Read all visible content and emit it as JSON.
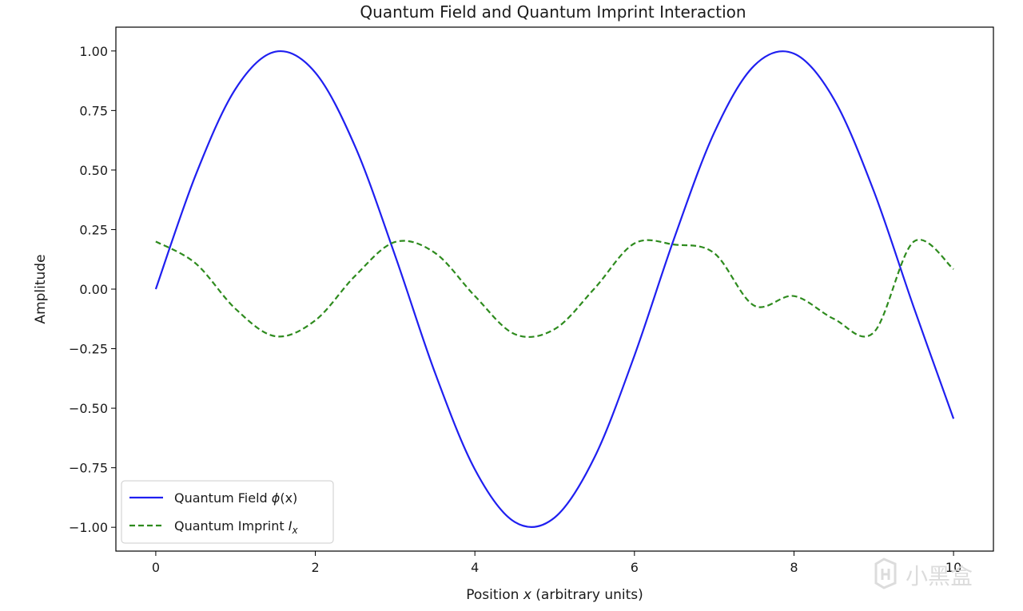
{
  "chart_data": {
    "type": "line",
    "title": "Quantum Field and Quantum Imprint Interaction",
    "xlabel": "Position x (arbitrary units)",
    "ylabel": "Amplitude",
    "xlim": [
      -0.5,
      10.5
    ],
    "ylim": [
      -1.1,
      1.1
    ],
    "xticks": [
      0,
      2,
      4,
      6,
      8,
      10
    ],
    "xtick_labels": [
      "0",
      "2",
      "4",
      "6",
      "8",
      "10"
    ],
    "yticks": [
      1.0,
      0.75,
      0.5,
      0.25,
      0.0,
      -0.25,
      -0.5,
      -0.75,
      -1.0
    ],
    "ytick_labels": [
      "1.00",
      "0.75",
      "0.50",
      "0.25",
      "0.00",
      "−0.25",
      "−0.50",
      "−0.75",
      "−1.00"
    ],
    "grid": false,
    "legend_position": "lower-left",
    "x": [
      0,
      0.5,
      1,
      1.5,
      2,
      2.5,
      3,
      3.5,
      4,
      4.5,
      5,
      5.5,
      6,
      6.5,
      7,
      7.5,
      8,
      8.5,
      9,
      9.5,
      10
    ],
    "series": [
      {
        "name": "Quantum Field ϕ(x)",
        "color": "#1f1ff0",
        "style": "solid",
        "values": [
          0.0,
          0.479,
          0.841,
          0.997,
          0.909,
          0.598,
          0.141,
          -0.351,
          -0.757,
          -0.978,
          -0.959,
          -0.706,
          -0.279,
          0.215,
          0.657,
          0.938,
          0.989,
          0.798,
          0.412,
          -0.075,
          -0.544
        ]
      },
      {
        "name": "Quantum Imprint Ix",
        "color": "#2e8b1e",
        "style": "dashed",
        "values": [
          0.2,
          0.108,
          -0.083,
          -0.198,
          -0.131,
          0.056,
          0.198,
          0.152,
          -0.029,
          -0.189,
          -0.168,
          0.003,
          0.192,
          0.187,
          0.151,
          -0.069,
          -0.029,
          -0.125,
          -0.182,
          0.199,
          0.084
        ]
      }
    ],
    "legend": [
      {
        "label_main": "Quantum Field ",
        "label_sym": "ϕ",
        "label_rest": "(x)"
      },
      {
        "label_main": "Quantum Imprint ",
        "label_sym": "I",
        "label_sub": "x"
      }
    ]
  },
  "watermark": {
    "text": "小黑盒",
    "icon": "heybox-logo-icon"
  }
}
